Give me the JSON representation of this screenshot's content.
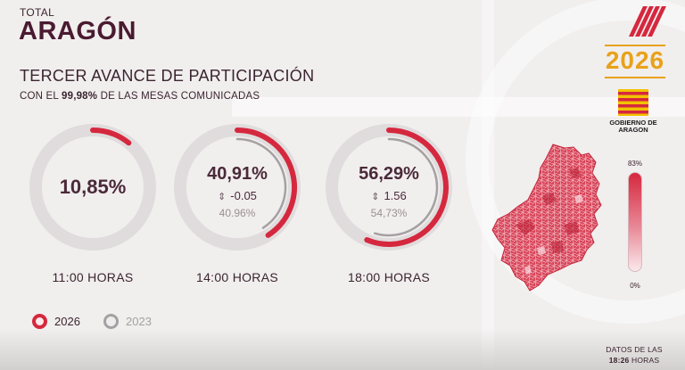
{
  "header": {
    "label": "TOTAL",
    "title": "ARAGÓN"
  },
  "section": {
    "title": "TERCER AVANCE DE PARTICIPACIÓN",
    "sub_prefix": "CON EL ",
    "sub_highlight": "99,98%",
    "sub_suffix": " DE LAS MESAS COMUNICADAS"
  },
  "readings": [
    {
      "hour": "11:00 HORAS",
      "pct": "10,85%",
      "value_2026": 10.85,
      "value_2023": null,
      "delta": "",
      "prev": ""
    },
    {
      "hour": "14:00 HORAS",
      "pct": "40,91%",
      "value_2026": 40.91,
      "value_2023": 40.96,
      "delta": "-0.05",
      "prev": "40.96%"
    },
    {
      "hour": "18:00 HORAS",
      "pct": "56,29%",
      "value_2026": 56.29,
      "value_2023": 54.73,
      "delta": "1.56",
      "prev": "54,73%"
    }
  ],
  "legend": {
    "current": "2026",
    "previous": "2023"
  },
  "logo": {
    "year": "2026",
    "gov_line1": "GOBIERNO DE",
    "gov_line2": "ARAGON"
  },
  "scale": {
    "max": "83%",
    "min": "0%"
  },
  "footer": {
    "line1": "DATOS DE LAS",
    "time": "18:26",
    "line2_suffix": " HORAS"
  },
  "colors": {
    "accent": "#d5283e",
    "ring_track": "#e0dcdd",
    "prev_ring": "#a6a0a3",
    "title": "#4a1a30",
    "gold": "#e8a21a"
  }
}
